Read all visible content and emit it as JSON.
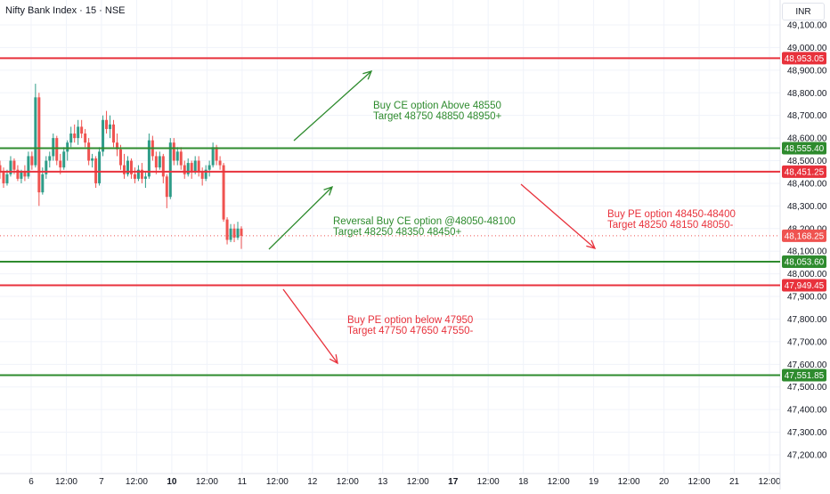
{
  "header": {
    "title": "Nifty Bank Index · 15 · NSE",
    "currency": "INR"
  },
  "colors": {
    "green": "#2e8b2e",
    "red": "#e8323c",
    "candle_up": "#2e9c88",
    "candle_down": "#ef5350",
    "grid": "#f0f3fa",
    "text": "#131722"
  },
  "chart_data": {
    "type": "candlestick",
    "ylim": [
      47150,
      49150
    ],
    "y_ticks": [
      {
        "value": 49100,
        "label": "49,100.00"
      },
      {
        "value": 49000,
        "label": "49,000.00"
      },
      {
        "value": 48900,
        "label": "48,900.00"
      },
      {
        "value": 48800,
        "label": "48,800.00"
      },
      {
        "value": 48700,
        "label": "48,700.00"
      },
      {
        "value": 48600,
        "label": "48,600.00"
      },
      {
        "value": 48500,
        "label": "48,500.00"
      },
      {
        "value": 48400,
        "label": "48,400.00"
      },
      {
        "value": 48300,
        "label": "48,300.00"
      },
      {
        "value": 48200,
        "label": "48,200.00"
      },
      {
        "value": 48100,
        "label": "48,100.00"
      },
      {
        "value": 48000,
        "label": "48,000.00"
      },
      {
        "value": 47900,
        "label": "47,900.00"
      },
      {
        "value": 47800,
        "label": "47,800.00"
      },
      {
        "value": 47700,
        "label": "47,700.00"
      },
      {
        "value": 47600,
        "label": "47,600.00"
      },
      {
        "value": 47500,
        "label": "47,500.00"
      },
      {
        "value": 47400,
        "label": "47,400.00"
      },
      {
        "value": 47300,
        "label": "47,300.00"
      },
      {
        "value": 47200,
        "label": "47,200.00"
      }
    ],
    "x_ticks": [
      {
        "label": "6",
        "bold": false
      },
      {
        "label": "12:00",
        "bold": false
      },
      {
        "label": "7",
        "bold": false
      },
      {
        "label": "12:00",
        "bold": false
      },
      {
        "label": "10",
        "bold": true
      },
      {
        "label": "12:00",
        "bold": false
      },
      {
        "label": "11",
        "bold": false
      },
      {
        "label": "12:00",
        "bold": false
      },
      {
        "label": "12",
        "bold": false
      },
      {
        "label": "12:00",
        "bold": false
      },
      {
        "label": "13",
        "bold": false
      },
      {
        "label": "12:00",
        "bold": false
      },
      {
        "label": "17",
        "bold": true
      },
      {
        "label": "12:00",
        "bold": false
      },
      {
        "label": "18",
        "bold": false
      },
      {
        "label": "12:00",
        "bold": false
      },
      {
        "label": "19",
        "bold": false
      },
      {
        "label": "12:00",
        "bold": false
      },
      {
        "label": "20",
        "bold": false
      },
      {
        "label": "12:00",
        "bold": false
      },
      {
        "label": "21",
        "bold": false
      },
      {
        "label": "12:00",
        "bold": false
      }
    ],
    "levels": [
      {
        "value": 48953.05,
        "label": "48,953.05",
        "color": "red"
      },
      {
        "value": 48555.4,
        "label": "48,555.40",
        "color": "green"
      },
      {
        "value": 48451.25,
        "label": "48,451.25",
        "color": "red"
      },
      {
        "value": 48053.6,
        "label": "48,053.60",
        "color": "green"
      },
      {
        "value": 47949.45,
        "label": "47,949.45",
        "color": "red"
      },
      {
        "value": 47551.85,
        "label": "47,551.85",
        "color": "green"
      }
    ],
    "last_price": {
      "value": 48168.25,
      "label": "48,168.25"
    },
    "candles": [
      [
        48480,
        48500,
        48420,
        48450
      ],
      [
        48450,
        48470,
        48380,
        48400
      ],
      [
        48400,
        48460,
        48390,
        48440
      ],
      [
        48440,
        48520,
        48430,
        48500
      ],
      [
        48500,
        48510,
        48440,
        48460
      ],
      [
        48460,
        48480,
        48410,
        48420
      ],
      [
        48420,
        48460,
        48400,
        48450
      ],
      [
        48450,
        48480,
        48410,
        48430
      ],
      [
        48430,
        48540,
        48420,
        48520
      ],
      [
        48520,
        48540,
        48460,
        48480
      ],
      [
        48480,
        48840,
        48470,
        48780
      ],
      [
        48780,
        48800,
        48300,
        48360
      ],
      [
        48360,
        48470,
        48350,
        48440
      ],
      [
        48440,
        48520,
        48420,
        48500
      ],
      [
        48500,
        48540,
        48470,
        48520
      ],
      [
        48520,
        48620,
        48500,
        48600
      ],
      [
        48600,
        48610,
        48480,
        48500
      ],
      [
        48500,
        48530,
        48440,
        48470
      ],
      [
        48470,
        48560,
        48460,
        48540
      ],
      [
        48540,
        48590,
        48500,
        48580
      ],
      [
        48580,
        48650,
        48560,
        48620
      ],
      [
        48620,
        48660,
        48580,
        48600
      ],
      [
        48600,
        48680,
        48570,
        48650
      ],
      [
        48650,
        48680,
        48600,
        48620
      ],
      [
        48620,
        48640,
        48560,
        48580
      ],
      [
        48580,
        48600,
        48480,
        48500
      ],
      [
        48500,
        48530,
        48470,
        48510
      ],
      [
        48510,
        48520,
        48380,
        48400
      ],
      [
        48400,
        48560,
        48390,
        48540
      ],
      [
        48540,
        48700,
        48520,
        48680
      ],
      [
        48680,
        48720,
        48620,
        48640
      ],
      [
        48640,
        48700,
        48600,
        48660
      ],
      [
        48660,
        48680,
        48560,
        48580
      ],
      [
        48580,
        48620,
        48520,
        48550
      ],
      [
        48550,
        48570,
        48460,
        48480
      ],
      [
        48480,
        48530,
        48420,
        48440
      ],
      [
        48440,
        48520,
        48430,
        48500
      ],
      [
        48500,
        48510,
        48420,
        48440
      ],
      [
        48440,
        48470,
        48400,
        48420
      ],
      [
        48420,
        48480,
        48410,
        48460
      ],
      [
        48460,
        48490,
        48400,
        48420
      ],
      [
        48420,
        48450,
        48380,
        48430
      ],
      [
        48430,
        48620,
        48420,
        48590
      ],
      [
        48590,
        48610,
        48500,
        48520
      ],
      [
        48520,
        48540,
        48440,
        48470
      ],
      [
        48470,
        48540,
        48460,
        48520
      ],
      [
        48520,
        48530,
        48400,
        48430
      ],
      [
        48430,
        48440,
        48290,
        48340
      ],
      [
        48340,
        48600,
        48330,
        48580
      ],
      [
        48580,
        48600,
        48480,
        48500
      ],
      [
        48500,
        48560,
        48480,
        48540
      ],
      [
        48540,
        48560,
        48460,
        48480
      ],
      [
        48480,
        48500,
        48420,
        48440
      ],
      [
        48440,
        48510,
        48430,
        48490
      ],
      [
        48490,
        48500,
        48420,
        48450
      ],
      [
        48450,
        48520,
        48440,
        48500
      ],
      [
        48500,
        48520,
        48430,
        48450
      ],
      [
        48450,
        48470,
        48390,
        48420
      ],
      [
        48420,
        48480,
        48410,
        48460
      ],
      [
        48460,
        48500,
        48430,
        48480
      ],
      [
        48480,
        48580,
        48470,
        48560
      ],
      [
        48560,
        48570,
        48480,
        48500
      ],
      [
        48500,
        48520,
        48460,
        48480
      ],
      [
        48480,
        48490,
        48230,
        48240
      ],
      [
        48240,
        48250,
        48130,
        48150
      ],
      [
        48150,
        48220,
        48140,
        48200
      ],
      [
        48200,
        48220,
        48140,
        48160
      ],
      [
        48160,
        48230,
        48150,
        48200
      ],
      [
        48200,
        48210,
        48110,
        48168
      ]
    ],
    "annotations": [
      {
        "lines": [
          "Buy CE option Above 48550",
          "Target 48750 48850 48950+"
        ],
        "color": "green"
      },
      {
        "lines": [
          "Reversal Buy CE option @48050-48100",
          "Target 48250 48350 48450+"
        ],
        "color": "green"
      },
      {
        "lines": [
          "Buy PE option 48450-48400",
          "Target 48250 48150 48050-"
        ],
        "color": "red"
      },
      {
        "lines": [
          "Buy PE option below 47950",
          "Target 47750 47650 47550-"
        ],
        "color": "red"
      }
    ]
  }
}
